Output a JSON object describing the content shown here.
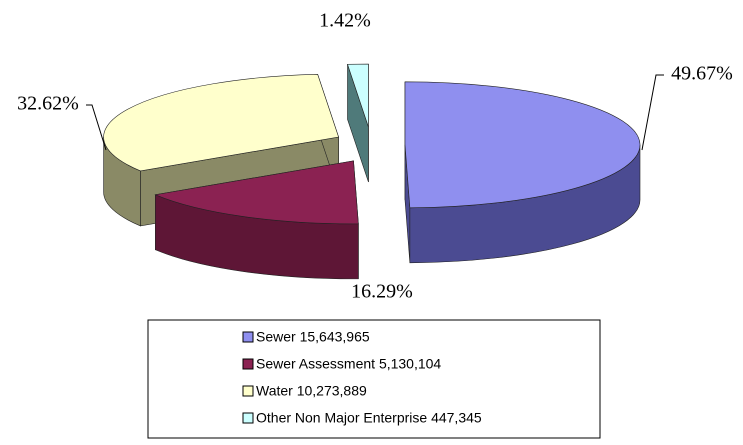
{
  "chart_data": {
    "type": "pie",
    "categories": [
      "Sewer  15,643,965",
      "Sewer Assessment  5,130,104",
      "Water  10,273,889",
      "Other Non Major Enterprise  447,345"
    ],
    "values": [
      49.67,
      16.29,
      32.62,
      1.42
    ],
    "value_labels": [
      "49.67%",
      "16.29%",
      "32.62%",
      "1.42%"
    ],
    "colors": [
      "#8f8fef",
      "#8b2252",
      "#ffffcc",
      "#ccffff"
    ],
    "side_colors": [
      "#4b4b92",
      "#5e1636",
      "#8a8a66",
      "#4f7a7a"
    ],
    "legend": "bottom"
  }
}
